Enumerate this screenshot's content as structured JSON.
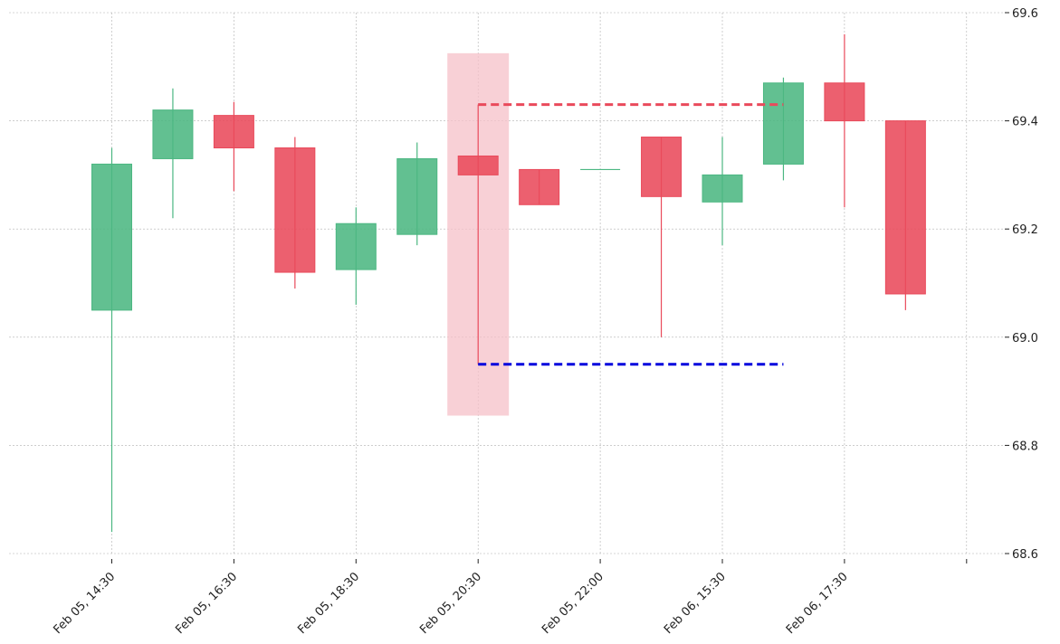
{
  "chart_data": {
    "type": "candlestick",
    "title": "",
    "xlabel": "",
    "ylabel": "",
    "ylim": [
      68.6,
      69.6
    ],
    "yticks": [
      "68.6",
      "68.8",
      "69.0",
      "69.2",
      "69.4",
      "69.6"
    ],
    "xtick_labels": [
      "Feb 05, 14:30",
      "Feb 05, 16:30",
      "Feb 05, 18:30",
      "Feb 05, 20:30",
      "Feb 05, 22:00",
      "Feb 06, 15:30",
      "Feb 06, 17:30"
    ],
    "xtick_positions": [
      0,
      2,
      4,
      6,
      8,
      10,
      12
    ],
    "extra_grid_positions": [
      14
    ],
    "grid": true,
    "colors": {
      "up": "#4cb782",
      "down": "#e94a5b",
      "highlight": "#f6c0c8",
      "resistance": "#e94a5b",
      "support": "#0000dd"
    },
    "candles": [
      {
        "open": 69.05,
        "high": 69.35,
        "low": 68.64,
        "close": 69.32
      },
      {
        "open": 69.33,
        "high": 69.46,
        "low": 69.22,
        "close": 69.42
      },
      {
        "open": 69.41,
        "high": 69.435,
        "low": 69.27,
        "close": 69.35
      },
      {
        "open": 69.35,
        "high": 69.37,
        "low": 69.09,
        "close": 69.12
      },
      {
        "open": 69.125,
        "high": 69.24,
        "low": 69.06,
        "close": 69.21
      },
      {
        "open": 69.19,
        "high": 69.36,
        "low": 69.17,
        "close": 69.33
      },
      {
        "open": 69.335,
        "high": 69.43,
        "low": 68.95,
        "close": 69.3
      },
      {
        "open": 69.31,
        "high": 69.31,
        "low": 69.245,
        "close": 69.245
      },
      {
        "open": 69.31,
        "high": 69.31,
        "low": 69.31,
        "close": 69.31
      },
      {
        "open": 69.37,
        "high": 69.37,
        "low": 69.0,
        "close": 69.26
      },
      {
        "open": 69.25,
        "high": 69.37,
        "low": 69.17,
        "close": 69.3
      },
      {
        "open": 69.32,
        "high": 69.48,
        "low": 69.29,
        "close": 69.47
      },
      {
        "open": 69.47,
        "high": 69.56,
        "low": 69.24,
        "close": 69.4
      },
      {
        "open": 69.4,
        "high": 69.4,
        "low": 69.05,
        "close": 69.08
      }
    ],
    "highlight": {
      "index": 6,
      "y_top": 69.525,
      "y_bottom": 68.855
    },
    "resistance_line": {
      "value": 69.43,
      "from_index": 6,
      "to_index": 11
    },
    "support_line": {
      "value": 68.95,
      "from_index": 6,
      "to_index": 11
    }
  }
}
